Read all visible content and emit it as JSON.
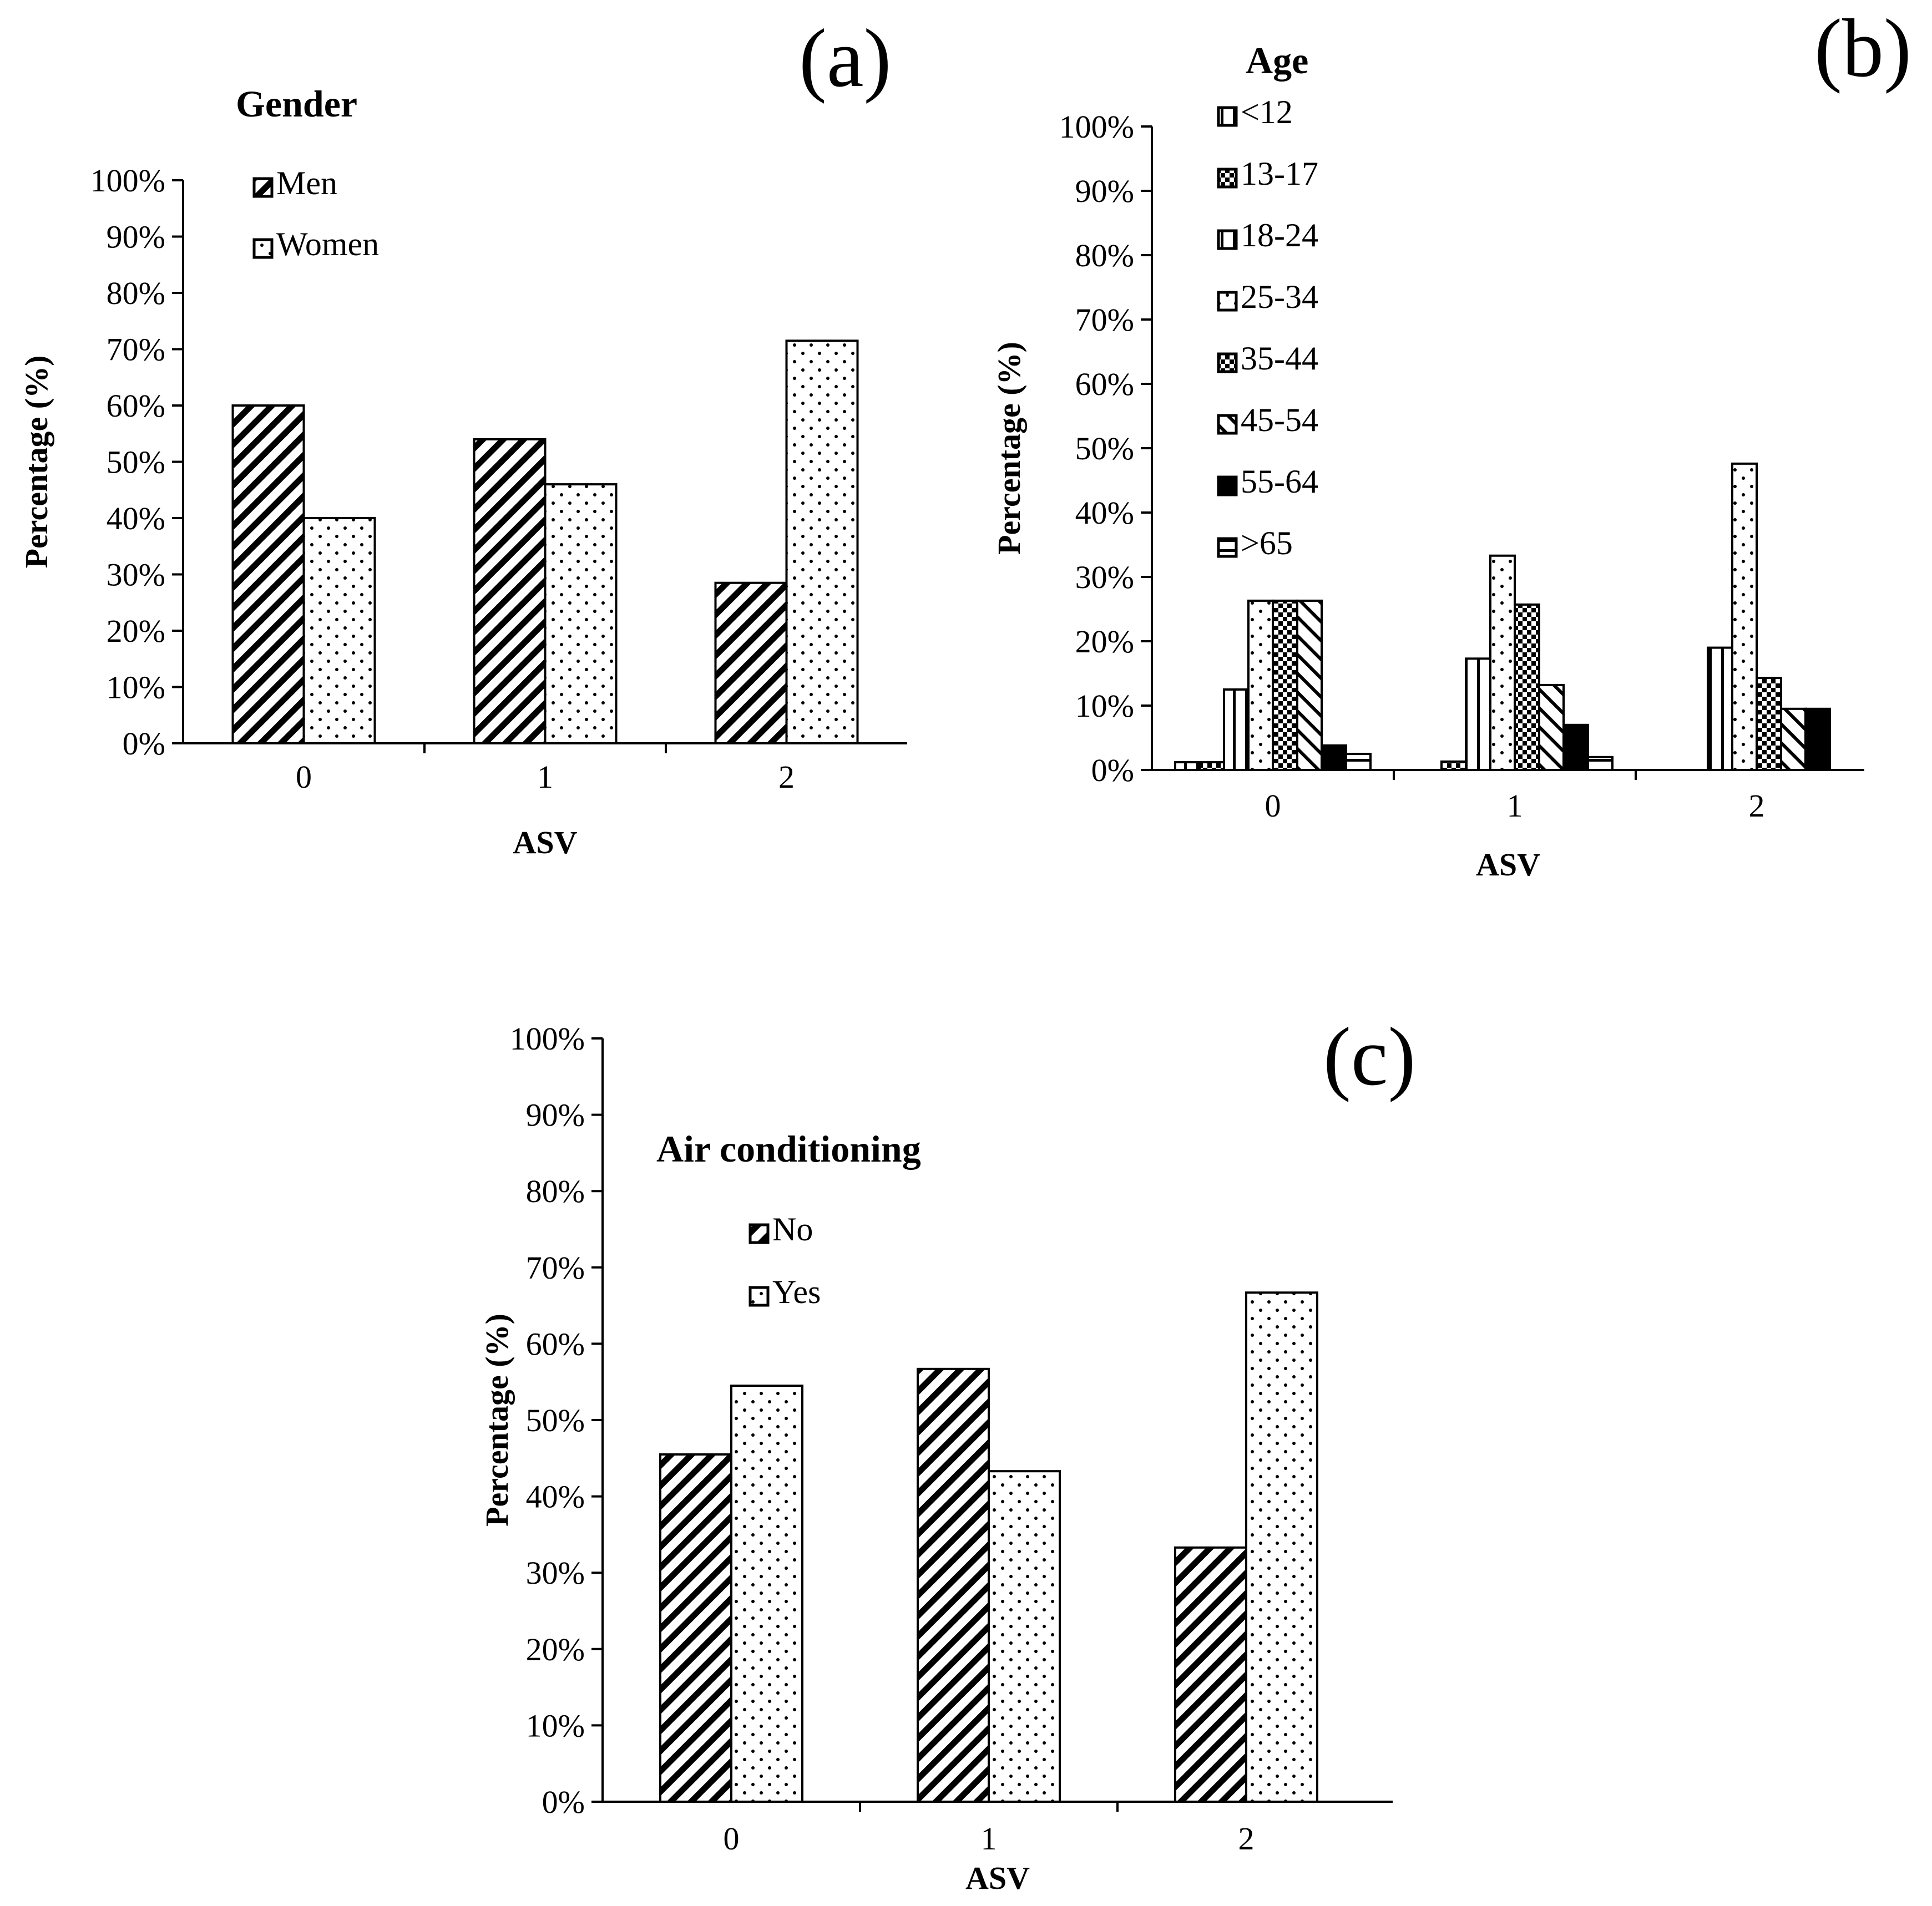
{
  "figure": {
    "panels": [
      {
        "id": "a",
        "label": "(a)"
      },
      {
        "id": "b",
        "label": "(b)"
      },
      {
        "id": "c",
        "label": "(c)"
      }
    ]
  },
  "chart_data": [
    {
      "panel": "(a)",
      "type": "bar",
      "title": "Gender",
      "xlabel": "ASV",
      "ylabel": "Percentage (%)",
      "categories": [
        "0",
        "1",
        "2"
      ],
      "ylim": [
        0,
        100
      ],
      "yticks": [
        "0%",
        "10%",
        "20%",
        "30%",
        "40%",
        "50%",
        "60%",
        "70%",
        "80%",
        "90%",
        "100%"
      ],
      "legend_position": "top-left",
      "series": [
        {
          "name": "Men",
          "pattern": "diagonal",
          "values": [
            60,
            54,
            28.5
          ]
        },
        {
          "name": "Women",
          "pattern": "dots",
          "values": [
            40,
            46,
            71.5
          ]
        }
      ]
    },
    {
      "panel": "(b)",
      "type": "bar",
      "title": "Age",
      "xlabel": "ASV",
      "ylabel": "Percentage (%)",
      "categories": [
        "0",
        "1",
        "2"
      ],
      "ylim": [
        0,
        100
      ],
      "yticks": [
        "0%",
        "10%",
        "20%",
        "30%",
        "40%",
        "50%",
        "60%",
        "70%",
        "80%",
        "90%",
        "100%"
      ],
      "legend_position": "top-left",
      "series": [
        {
          "name": "<12",
          "pattern": "vlines",
          "values": [
            1.2,
            0,
            0
          ]
        },
        {
          "name": "13-17",
          "pattern": "checker",
          "values": [
            1.2,
            1.3,
            0
          ]
        },
        {
          "name": "18-24",
          "pattern": "vlines",
          "values": [
            12.5,
            17.3,
            19
          ]
        },
        {
          "name": "25-34",
          "pattern": "dots",
          "values": [
            26.3,
            33.3,
            47.6
          ]
        },
        {
          "name": "35-44",
          "pattern": "checker",
          "values": [
            26.3,
            25.7,
            14.3
          ]
        },
        {
          "name": "45-54",
          "pattern": "diagonal-light",
          "values": [
            26.3,
            13.2,
            9.5
          ]
        },
        {
          "name": "55-64",
          "pattern": "solid",
          "values": [
            3.8,
            7,
            9.5
          ]
        },
        {
          "name": ">65",
          "pattern": "hlines",
          "values": [
            2.5,
            2,
            0
          ]
        }
      ]
    },
    {
      "panel": "(c)",
      "type": "bar",
      "title": "Air conditioning",
      "xlabel": "ASV",
      "ylabel": "Percentage (%)",
      "categories": [
        "0",
        "1",
        "2"
      ],
      "ylim": [
        0,
        100
      ],
      "yticks": [
        "0%",
        "10%",
        "20%",
        "30%",
        "40%",
        "50%",
        "60%",
        "70%",
        "80%",
        "90%",
        "100%"
      ],
      "legend_position": "top-left",
      "series": [
        {
          "name": "No",
          "pattern": "diagonal",
          "values": [
            45.5,
            56.7,
            33.3
          ]
        },
        {
          "name": "Yes",
          "pattern": "dots",
          "values": [
            54.5,
            43.3,
            66.7
          ]
        }
      ]
    }
  ]
}
